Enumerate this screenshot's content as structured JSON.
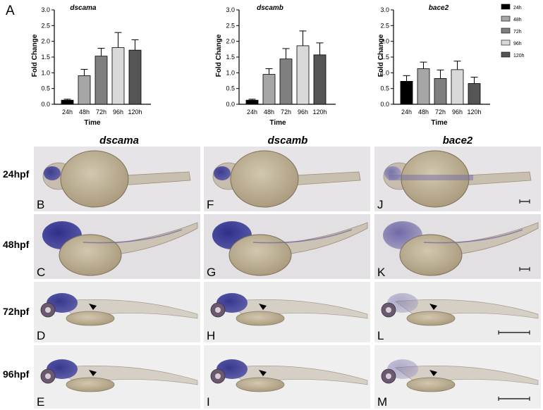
{
  "figure": {
    "panel_label": "A",
    "legend": [
      "24h",
      "48h",
      "72h",
      "96h",
      "120h"
    ],
    "colors": {
      "series": [
        "#000000",
        "#a6a6a6",
        "#7f7f7f",
        "#d9d9d9",
        "#555555"
      ],
      "stain": "#3e3f8f",
      "embryo": "#b9ac90",
      "background": "#e4e2e2"
    },
    "columns": [
      "dscama",
      "dscamb",
      "bace2"
    ],
    "rows": [
      {
        "label": "24hpf",
        "letters": [
          "B",
          "F",
          "J"
        ]
      },
      {
        "label": "48hpf",
        "letters": [
          "C",
          "G",
          "K"
        ]
      },
      {
        "label": "72hpf",
        "letters": [
          "D",
          "H",
          "L"
        ]
      },
      {
        "label": "96hpf",
        "letters": [
          "E",
          "I",
          "M"
        ]
      }
    ]
  },
  "chart_data": [
    {
      "type": "bar",
      "title": "dscama",
      "xlabel": "Time",
      "ylabel": "Fold Change",
      "categories": [
        "24h",
        "48h",
        "72h",
        "96h",
        "120h"
      ],
      "values": [
        0.13,
        0.91,
        1.53,
        1.8,
        1.72
      ],
      "errors": [
        0.03,
        0.2,
        0.25,
        0.48,
        0.33
      ],
      "ylim": [
        0,
        3.0
      ],
      "yticks": [
        "0.0",
        "0.5",
        "1.0",
        "1.5",
        "2.0",
        "2.5",
        "3.0"
      ]
    },
    {
      "type": "bar",
      "title": "dscamb",
      "xlabel": "Time",
      "ylabel": "Fold Change",
      "categories": [
        "24h",
        "48h",
        "72h",
        "96h",
        "120h"
      ],
      "values": [
        0.13,
        0.95,
        1.44,
        1.86,
        1.57
      ],
      "errors": [
        0.03,
        0.18,
        0.33,
        0.47,
        0.38
      ],
      "ylim": [
        0,
        3.0
      ],
      "yticks": [
        "0.0",
        "0.5",
        "1.0",
        "1.5",
        "2.0",
        "2.5",
        "3.0"
      ]
    },
    {
      "type": "bar",
      "title": "bace2",
      "xlabel": "Time",
      "ylabel": "Fold Change",
      "categories": [
        "24h",
        "48h",
        "72h",
        "96h",
        "120h"
      ],
      "values": [
        0.73,
        1.13,
        0.82,
        1.1,
        0.66
      ],
      "errors": [
        0.18,
        0.21,
        0.27,
        0.27,
        0.2
      ],
      "ylim": [
        0,
        3.0
      ],
      "yticks": [
        "0.0",
        "0.5",
        "1.0",
        "1.5",
        "2.0",
        "2.5",
        "3.0"
      ]
    }
  ]
}
